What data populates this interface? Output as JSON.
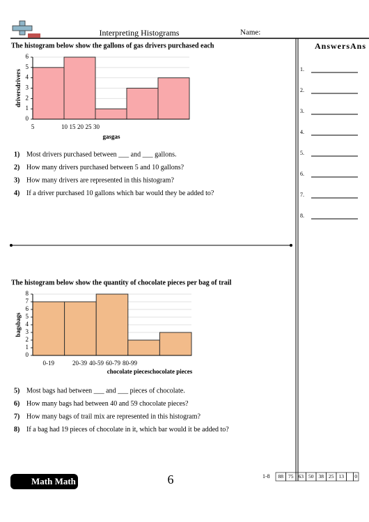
{
  "header": {
    "title": "Interpreting Histograms",
    "name_label": "Name:"
  },
  "answers": {
    "title": "AnswersAns",
    "items": [
      "1.",
      "2.",
      "3.",
      "4.",
      "5.",
      "6.",
      "7.",
      "8."
    ]
  },
  "sections": [
    {
      "title": "The histogram below show the gallons of gas drivers purchased each",
      "questions": [
        {
          "number": "1)",
          "text": "Most drivers purchased between ___ and ___ gallons."
        },
        {
          "number": "2)",
          "text": "How many drivers purchased between 5 and 10 gallons?"
        },
        {
          "number": "3)",
          "text": "How many drivers are represented in this histogram?"
        },
        {
          "number": "4)",
          "text": "If a driver purchased 10 gallons which bar would they be added to?"
        }
      ]
    },
    {
      "title": "The histogram below show the quantity of chocolate pieces per bag of trail",
      "questions": [
        {
          "number": "5)",
          "text": "Most bags had between ___ and ___ pieces of chocolate."
        },
        {
          "number": "6)",
          "text": "How many bags had between 40 and 59 chocolate pieces?"
        },
        {
          "number": "7)",
          "text": "How many bags of trail mix are represented in this histogram?"
        },
        {
          "number": "8)",
          "text": "If a bag had 19 pieces of chocolate in it, which bar would it be added to?"
        }
      ]
    }
  ],
  "chart_data": [
    {
      "type": "histogram",
      "ylabel": "driversdrivers",
      "xlabel": "gasgas",
      "bins": [
        5,
        10,
        15,
        20,
        25,
        30
      ],
      "values": [
        5,
        6,
        1,
        3,
        4
      ],
      "color": "#f9a9ab",
      "ylim": [
        0,
        6
      ],
      "yticks": [
        0,
        1,
        2,
        3,
        4,
        5,
        6
      ],
      "grid": true
    },
    {
      "type": "bar",
      "ylabel": "bagsbags",
      "xlabel": "chocolate pieceschocolate pieces",
      "categories": [
        "0-19",
        "20-39",
        "40-59",
        "60-79",
        "80-99"
      ],
      "values": [
        7,
        7,
        8,
        2,
        3
      ],
      "color": "#f2bb8a",
      "ylim": [
        0,
        8
      ],
      "yticks": [
        0,
        1,
        2,
        3,
        4,
        5,
        6,
        7,
        8
      ],
      "grid": true
    }
  ],
  "footer": {
    "logo": "Math Math",
    "page": "6",
    "range": "1-8",
    "scores": [
      "88",
      "75",
      "63",
      "50",
      "38",
      "25",
      "13"
    ],
    "last": "0"
  }
}
